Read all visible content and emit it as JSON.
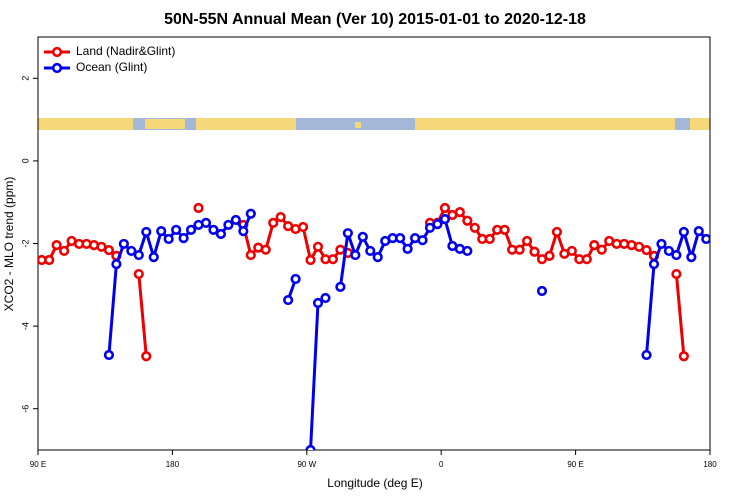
{
  "chart_data": {
    "type": "line",
    "title": "50N-55N Annual Mean (Ver 10)   2015-01-01 to 2020-12-18",
    "x_label": "Longitude (deg E)",
    "y_label": "XCO2 - MLO trend (ppm)",
    "x": [
      92.5,
      97.5,
      102.5,
      107.5,
      112.5,
      117.5,
      122.5,
      127.5,
      132.5,
      137.5,
      142.5,
      147.5,
      152.5,
      157.5,
      162.5,
      167.5,
      172.5,
      177.5,
      182.5,
      187.5,
      192.5,
      197.5,
      202.5,
      207.5,
      212.5,
      217.5,
      222.5,
      227.5,
      232.5,
      237.5,
      242.5,
      247.5,
      252.5,
      257.5,
      262.5,
      267.5,
      272.5,
      277.5,
      282.5,
      287.5,
      292.5,
      297.5,
      302.5,
      307.5,
      312.5,
      317.5,
      322.5,
      327.5,
      332.5,
      337.5,
      342.5,
      347.5,
      352.5,
      357.5,
      362.5,
      367.5,
      372.5,
      377.5,
      382.5,
      387.5,
      392.5,
      397.5,
      402.5,
      407.5,
      412.5,
      417.5,
      422.5,
      427.5,
      432.5,
      437.5,
      442.5,
      447.5,
      452.5,
      457.5,
      462.5,
      467.5,
      472.5,
      477.5,
      482.5,
      487.5,
      492.5,
      497.5,
      502.5,
      507.5,
      512.5,
      517.5,
      522.5,
      527.5,
      532.5,
      537.5
    ],
    "series": [
      {
        "name": "Land (Nadir&Glint)",
        "color": "#ee0000",
        "values": [
          -2.4,
          -2.4,
          -2.04,
          -2.18,
          -1.94,
          -2.01,
          -2.01,
          -2.04,
          -2.08,
          -2.16,
          -2.3,
          null,
          null,
          -2.74,
          -4.73,
          null,
          null,
          null,
          null,
          null,
          null,
          -1.14,
          null,
          null,
          null,
          null,
          null,
          -1.55,
          -2.28,
          -2.1,
          -2.15,
          -1.5,
          -1.36,
          -1.58,
          -1.65,
          -1.6,
          -2.4,
          -2.08,
          -2.38,
          -2.38,
          -2.15,
          -2.23,
          null,
          null,
          null,
          null,
          null,
          null,
          null,
          null,
          null,
          null,
          -1.5,
          -1.5,
          -1.14,
          -1.31,
          -1.24,
          -1.45,
          -1.62,
          -1.89,
          -1.89,
          -1.67,
          -1.67,
          -2.15,
          -2.15,
          -1.94,
          -2.2,
          -2.38,
          -2.3,
          -1.72,
          -2.25,
          -2.18,
          -2.38,
          -2.38,
          -2.04,
          -2.15,
          -1.94,
          -2.01,
          -2.01,
          -2.04,
          -2.08,
          -2.16,
          -2.3,
          null,
          null,
          -2.74,
          -4.73,
          null,
          null,
          null
        ]
      },
      {
        "name": "Ocean (Glint)",
        "color": "#0000ee",
        "values": [
          null,
          null,
          null,
          null,
          null,
          null,
          null,
          null,
          null,
          -4.7,
          -2.5,
          -2.01,
          -2.18,
          -2.28,
          -1.72,
          -2.33,
          -1.7,
          -1.89,
          -1.67,
          -1.87,
          -1.67,
          -1.55,
          -1.5,
          -1.67,
          -1.77,
          -1.55,
          -1.43,
          -1.7,
          -1.28,
          null,
          null,
          null,
          null,
          -3.37,
          -2.86,
          null,
          -7.0,
          -3.44,
          -3.32,
          null,
          -3.05,
          -1.75,
          -2.28,
          -1.84,
          -2.18,
          -2.33,
          -1.94,
          -1.87,
          -1.87,
          -2.13,
          -1.87,
          -1.92,
          -1.62,
          -1.53,
          -1.41,
          -2.06,
          -2.13,
          -2.18,
          null,
          null,
          null,
          null,
          null,
          null,
          null,
          null,
          null,
          -3.15,
          null,
          null,
          null,
          null,
          null,
          null,
          null,
          null,
          null,
          null,
          null,
          null,
          null,
          -4.7,
          -2.5,
          -2.01,
          -2.18,
          -2.28,
          -1.72,
          -2.33,
          -1.7,
          -1.89
        ]
      }
    ],
    "xlim": [
      90,
      540
    ],
    "xticks": [
      {
        "value": 90,
        "label": "90 E"
      },
      180,
      {
        "value": 270,
        "label": "90 W"
      },
      {
        "value": 360,
        "label": "0"
      },
      {
        "value": 450,
        "label": "90 E"
      },
      {
        "value": 540,
        "label": "180"
      }
    ],
    "ylim": [
      -7,
      3
    ],
    "yticks": [
      -6,
      -4,
      -2,
      0,
      2
    ],
    "legend": "top-left"
  }
}
